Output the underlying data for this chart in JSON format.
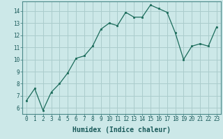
{
  "x": [
    0,
    1,
    2,
    3,
    4,
    5,
    6,
    7,
    8,
    9,
    10,
    11,
    12,
    13,
    14,
    15,
    16,
    17,
    18,
    19,
    20,
    21,
    22,
    23
  ],
  "y": [
    6.6,
    7.6,
    5.8,
    7.3,
    8.0,
    8.9,
    10.1,
    10.3,
    11.1,
    12.5,
    13.0,
    12.8,
    13.9,
    13.5,
    13.5,
    14.5,
    14.2,
    13.9,
    12.2,
    10.0,
    11.1,
    11.3,
    11.1,
    12.7
  ],
  "xlabel": "Humidex (Indice chaleur)",
  "bg_color": "#cce8e8",
  "grid_color": "#aacccc",
  "line_color": "#1a6b5a",
  "marker_color": "#1a6b5a",
  "xlim": [
    -0.5,
    23.5
  ],
  "ylim": [
    5.5,
    14.8
  ],
  "yticks": [
    6,
    7,
    8,
    9,
    10,
    11,
    12,
    13,
    14
  ],
  "xticks": [
    0,
    1,
    2,
    3,
    4,
    5,
    6,
    7,
    8,
    9,
    10,
    11,
    12,
    13,
    14,
    15,
    16,
    17,
    18,
    19,
    20,
    21,
    22,
    23
  ],
  "tick_fontsize": 5.5,
  "xlabel_fontsize": 7.0,
  "tick_color": "#1a5a5a",
  "spine_color": "#4a8888"
}
